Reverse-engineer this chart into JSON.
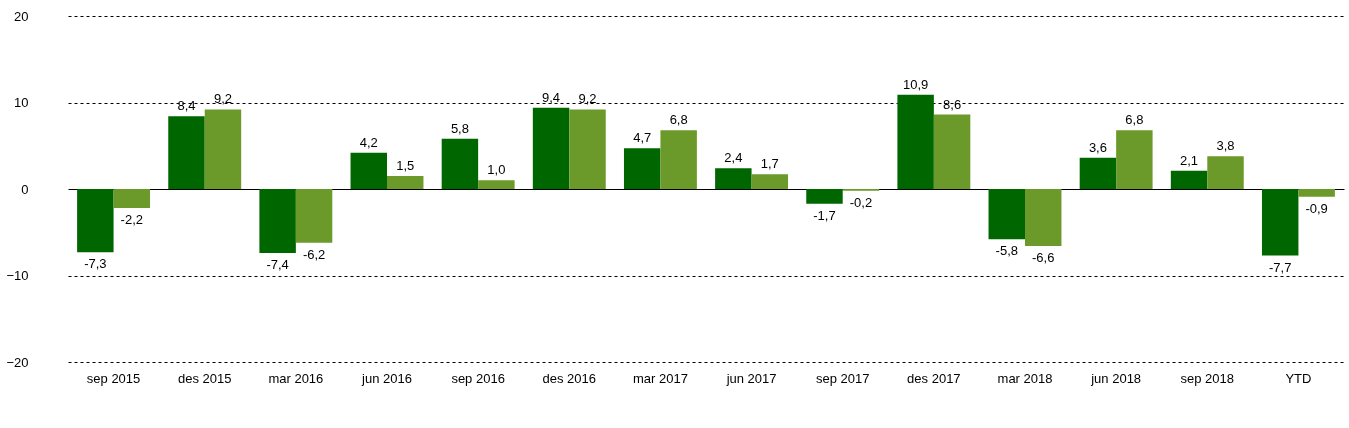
{
  "chart_data": {
    "type": "bar",
    "categories": [
      "sep 2015",
      "des 2015",
      "mar 2016",
      "jun 2016",
      "sep 2016",
      "des 2016",
      "mar 2017",
      "jun 2017",
      "sep 2017",
      "des 2017",
      "mar 2018",
      "jun 2018",
      "sep 2018",
      "YTD"
    ],
    "series": [
      {
        "color": "#006600",
        "values": [
          -7.3,
          8.4,
          -7.4,
          4.2,
          5.8,
          9.4,
          4.7,
          2.4,
          -1.7,
          10.9,
          -5.8,
          3.6,
          2.1,
          -7.7
        ],
        "value_labels": [
          "-7,3",
          "8,4",
          "-7,4",
          "4,2",
          "5,8",
          "9,4",
          "4,7",
          "2,4",
          "-1,7",
          "10,9",
          "-5,8",
          "3,6",
          "2,1",
          "-7,7"
        ]
      },
      {
        "color": "#6b9a2a",
        "values": [
          -2.2,
          9.2,
          -6.2,
          1.5,
          1.0,
          9.2,
          6.8,
          1.7,
          -0.2,
          8.6,
          -6.6,
          6.8,
          3.8,
          -0.9
        ],
        "value_labels": [
          "-2,2",
          "9,2",
          "-6,2",
          "1,5",
          "1,0",
          "9,2",
          "6,8",
          "1,7",
          "-0,2",
          "8,6",
          "-6,6",
          "6,8",
          "3,8",
          "-0,9"
        ]
      }
    ],
    "ylim": [
      -20,
      20
    ],
    "yticks": [
      -20,
      -10,
      0,
      10,
      20
    ],
    "grid": "y",
    "legend": false
  }
}
